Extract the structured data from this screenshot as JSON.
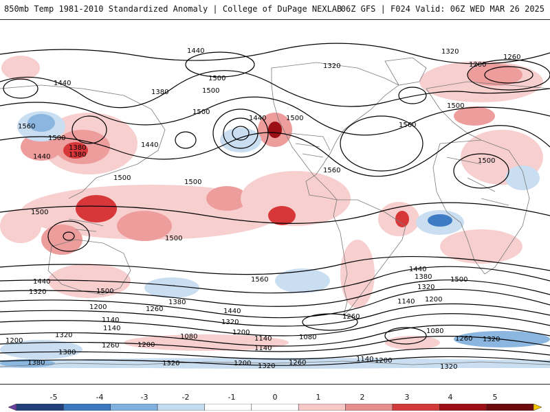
{
  "header": {
    "title_left": "850mb Temp 1981-2010 Standardized Anomaly | College of DuPage NEXLAB",
    "title_right": "06Z GFS | F024 Valid: 06Z WED MAR 26 2025"
  },
  "colorbar": {
    "ticks": [
      "-5",
      "-4",
      "-3",
      "-2",
      "-1",
      "0",
      "1",
      "2",
      "3",
      "4",
      "5"
    ],
    "colors": [
      "#6a3fa0",
      "#22407a",
      "#3a78c0",
      "#7fb0de",
      "#c4dcf0",
      "#ffffff",
      "#ffffff",
      "#f6c8c8",
      "#e78f8f",
      "#d23a3a",
      "#9c0f15",
      "#6d0a0e",
      "#f5c400"
    ]
  },
  "map": {
    "anomaly_colors": {
      "warm_light": "#f7cfcf",
      "warm_mid": "#ee9d9d",
      "warm_strong": "#d8373a",
      "warm_extreme": "#9c0f15",
      "cold_light": "#c9def1",
      "cold_mid": "#8ab6e0",
      "cold_strong": "#3d7cc4"
    },
    "contour_labels": [
      "1440",
      "1500",
      "1320",
      "1260",
      "1200",
      "1440",
      "1320",
      "1380",
      "1500",
      "1440",
      "1560",
      "1500",
      "1440",
      "1380",
      "1380",
      "1440",
      "1500",
      "1500",
      "1560",
      "1500",
      "1500",
      "1500",
      "1560",
      "1500",
      "1500",
      "1500",
      "1440",
      "1380",
      "1320",
      "1500",
      "1440",
      "1320",
      "1500",
      "1380",
      "1200",
      "1260",
      "1140",
      "1200",
      "1140",
      "1140",
      "1320",
      "1440",
      "1260",
      "1080",
      "1200",
      "1080",
      "1200",
      "1140",
      "1140",
      "1080",
      "1200",
      "1260",
      "1320",
      "1380",
      "1200",
      "1260",
      "1320",
      "1380",
      "1140",
      "1320",
      "1200",
      "1260",
      "1560",
      "1320",
      "1320"
    ]
  }
}
